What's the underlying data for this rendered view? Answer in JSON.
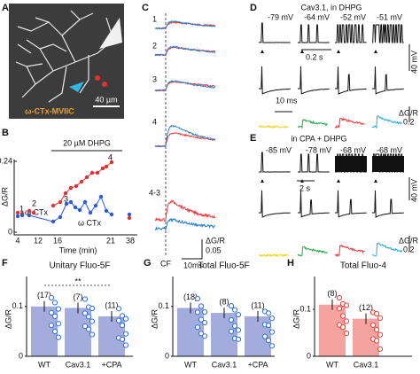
{
  "A": {
    "label": "A",
    "drug": "ω-CTx-MVIIC",
    "scale": "40 µm"
  },
  "B": {
    "label": "B",
    "drug": "20 µM DHPG",
    "ylabel": "ΔG/R",
    "yticks": [
      0.24,
      0
    ],
    "xticks": [
      4,
      12,
      16,
      21,
      38
    ],
    "xlabel": "Time (min)",
    "points": [
      "1",
      "2",
      "3",
      "4"
    ],
    "ctx": [
      "ω CTx",
      "ω CTx"
    ]
  },
  "C": {
    "label": "C",
    "rows": [
      "1",
      "2",
      "3",
      "4",
      "4-3"
    ],
    "stim": "CF",
    "time_scale": "10ms",
    "amp_label": "ΔG/R",
    "amp_scale": "0.05"
  },
  "D": {
    "label": "D",
    "title": "Cav3.1, in DHPG",
    "potentials": [
      "-79 mV",
      "-64 mV",
      "-52 mV",
      "-51 mV"
    ],
    "slow_scale": "0.2 s",
    "volt_scale": "40 mV",
    "fast_scale": "10 ms",
    "amp_label": "ΔG/R",
    "amp_scale": "0.2"
  },
  "E": {
    "label": "E",
    "title": "in CPA + DHPG",
    "potentials": [
      "-85 mV",
      "-78 mV",
      "-68 mV",
      "-68 mV"
    ],
    "slow_scale": "2 s",
    "volt_scale": "40 mV",
    "amp_label": "ΔG/R",
    "amp_scale": "0.2"
  },
  "bars": [
    {
      "label": "F",
      "title": "Unitary Fluo-5F",
      "ylabel": "ΔG/R",
      "ylim": [
        0,
        0.16
      ],
      "yticks": [
        0,
        0.1
      ],
      "categories": [
        "WT",
        "Cav3.1",
        "+CPA"
      ],
      "values": [
        0.1,
        0.097,
        0.08
      ],
      "counts": [
        "(17)",
        "(7)",
        "(11)"
      ],
      "color": "#a3acdc",
      "dot": "#2f6fd8",
      "significance": "**"
    },
    {
      "label": "G",
      "title": "Total Fluo-5F",
      "ylabel": "ΔG/R",
      "ylim": [
        0,
        0.16
      ],
      "yticks": [
        0,
        0.1
      ],
      "categories": [
        "WT",
        "Cav3.1",
        "+CPA"
      ],
      "values": [
        0.097,
        0.087,
        0.08
      ],
      "counts": [
        "(18)",
        "(8)",
        "(11)"
      ],
      "color": "#a3acdc",
      "dot": "#2f6fd8"
    },
    {
      "label": "H",
      "title": "Total Fluo-4",
      "ylabel": "ΔG/R",
      "ylim": [
        0,
        0.17
      ],
      "yticks": [
        0,
        0.1
      ],
      "categories": [
        "WT",
        "Cav3.1"
      ],
      "values": [
        0.11,
        0.08
      ],
      "counts": [
        "(8)",
        "(12)"
      ],
      "color": "#f4a3a0",
      "dot": "#e8403a"
    }
  ]
}
